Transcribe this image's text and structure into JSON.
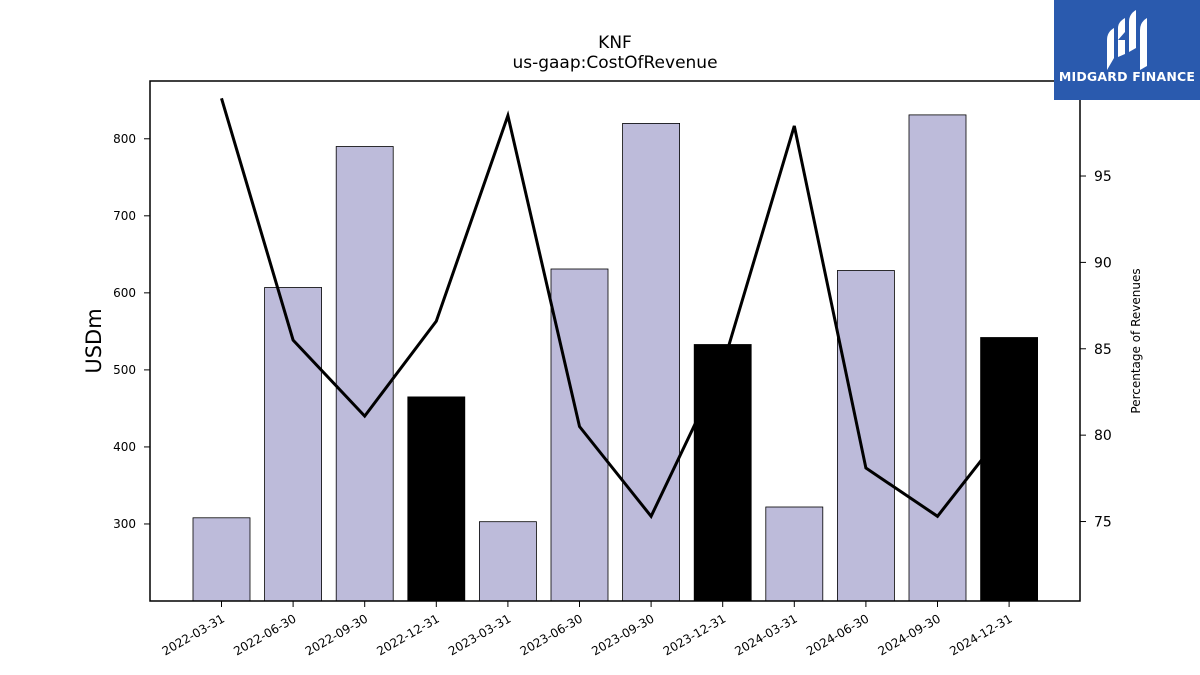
{
  "colors": {
    "bar": "#bdbbda",
    "bar_highlight": "#000000",
    "line": "#000000",
    "logo_bg": "#2a5aae"
  },
  "logo": {
    "text": "MIDGARD FINANCE",
    "icon": "midgard-m-logo-icon"
  },
  "chart_data": {
    "type": "bar+line",
    "title": "KNF",
    "subtitle": "us-gaap:CostOfRevenue",
    "ylabel": "USDm",
    "y2label": "Percentage of Revenues",
    "categories": [
      "2022-03-31",
      "2022-06-30",
      "2022-09-30",
      "2022-12-31",
      "2023-03-31",
      "2023-06-30",
      "2023-09-30",
      "2023-12-31",
      "2024-03-31",
      "2024-06-30",
      "2024-09-30",
      "2024-12-31"
    ],
    "bar_series": {
      "values": [
        308,
        607,
        790,
        465,
        303,
        631,
        820,
        533,
        322,
        629,
        831,
        542
      ],
      "highlight": [
        false,
        false,
        false,
        true,
        false,
        false,
        false,
        true,
        false,
        false,
        false,
        true
      ]
    },
    "line_series": {
      "values": [
        99.5,
        85.5,
        81.1,
        86.6,
        98.5,
        80.5,
        75.3,
        84.0,
        97.9,
        78.1,
        75.3,
        80.6
      ]
    },
    "ylim": [
      200,
      875
    ],
    "y2lim": [
      70.4,
      100.5
    ],
    "yticks": [
      300,
      400,
      500,
      600,
      700,
      800
    ],
    "y2ticks": [
      75,
      80,
      85,
      90,
      95
    ],
    "grid": false,
    "legend": "none"
  }
}
